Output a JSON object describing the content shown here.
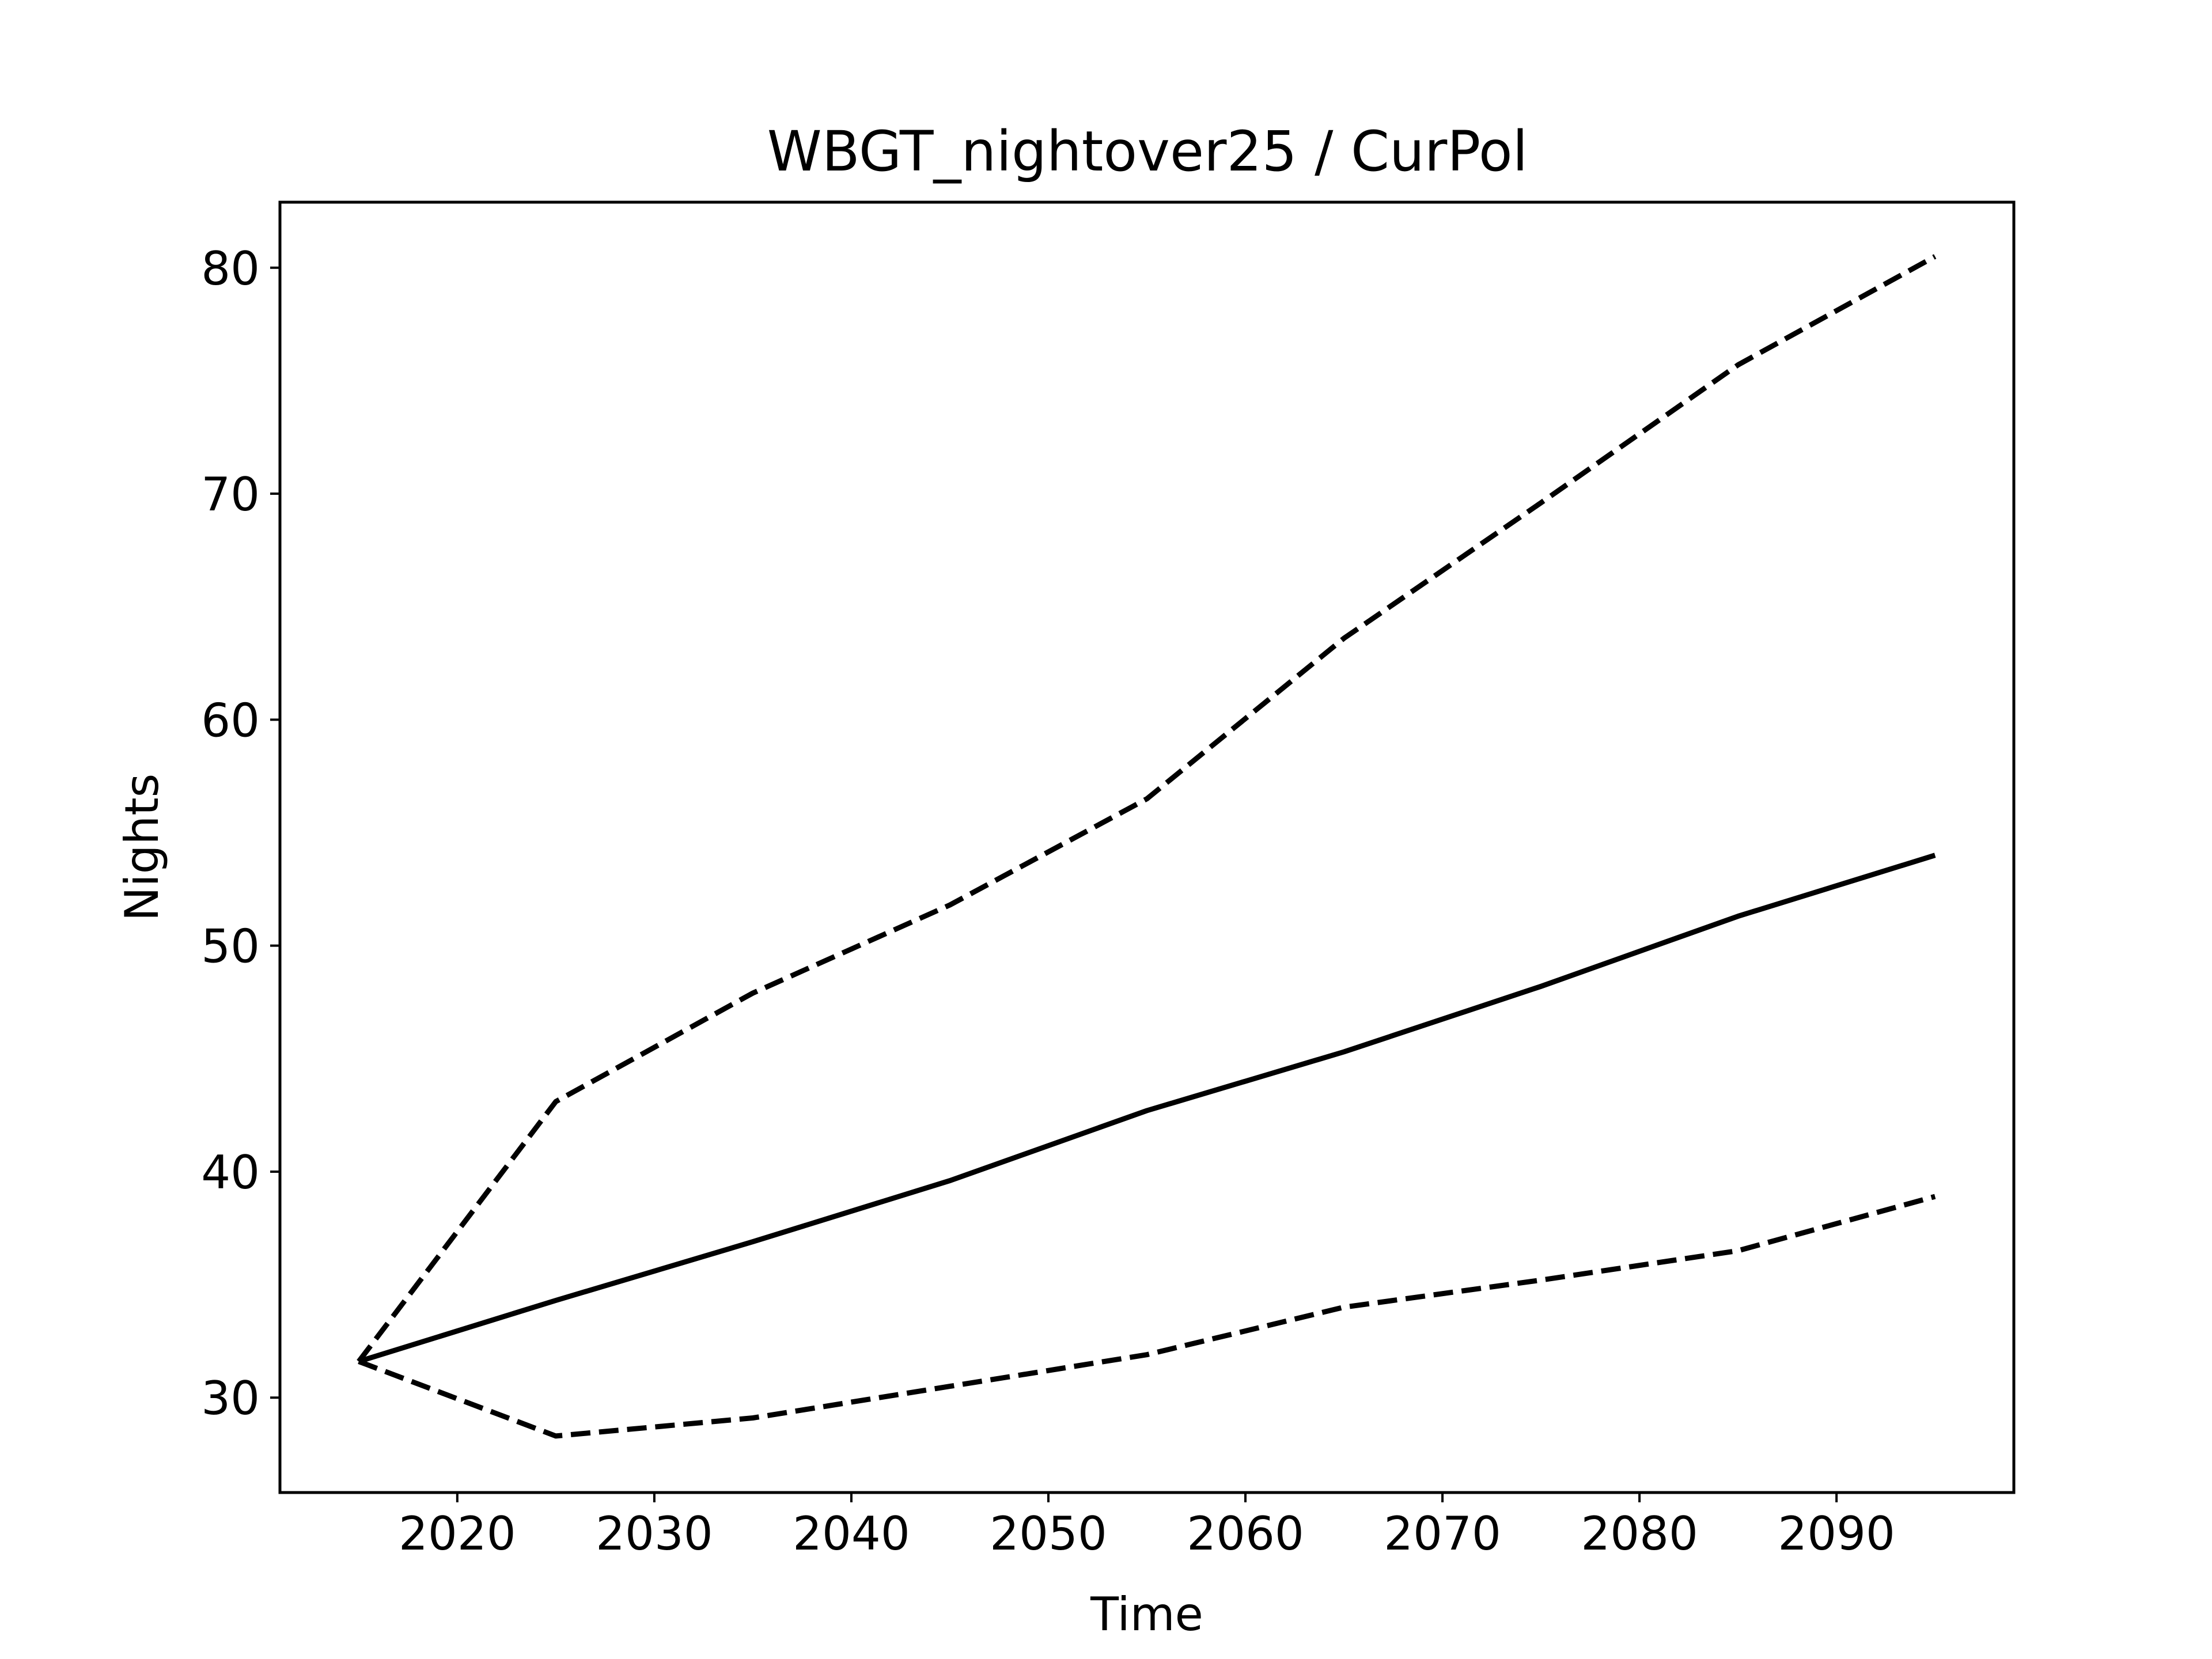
{
  "chart_data": {
    "type": "line",
    "title": "WBGT_nightover25 / CurPol",
    "xlabel": "Time",
    "ylabel": "Nights",
    "xlim": [
      2011,
      2099
    ],
    "ylim": [
      25.8,
      82.9
    ],
    "xticks": [
      2020,
      2030,
      2040,
      2050,
      2060,
      2070,
      2080,
      2090
    ],
    "yticks": [
      30,
      40,
      50,
      60,
      70,
      80
    ],
    "grid": false,
    "legend": false,
    "x": [
      2015,
      2025,
      2035,
      2045,
      2055,
      2065,
      2075,
      2085,
      2095
    ],
    "series": [
      {
        "style": "solid",
        "color": "#000000",
        "values": [
          31.6,
          34.3,
          36.9,
          39.6,
          42.7,
          45.3,
          48.2,
          51.3,
          54.0
        ]
      },
      {
        "style": "dashed",
        "color": "#000000",
        "values": [
          31.6,
          43.1,
          47.9,
          51.8,
          56.5,
          63.6,
          69.6,
          75.7,
          80.5
        ]
      },
      {
        "style": "dashed",
        "color": "#000000",
        "values": [
          31.6,
          28.3,
          29.1,
          30.5,
          31.9,
          34.0,
          35.2,
          36.5,
          38.9
        ]
      }
    ]
  }
}
